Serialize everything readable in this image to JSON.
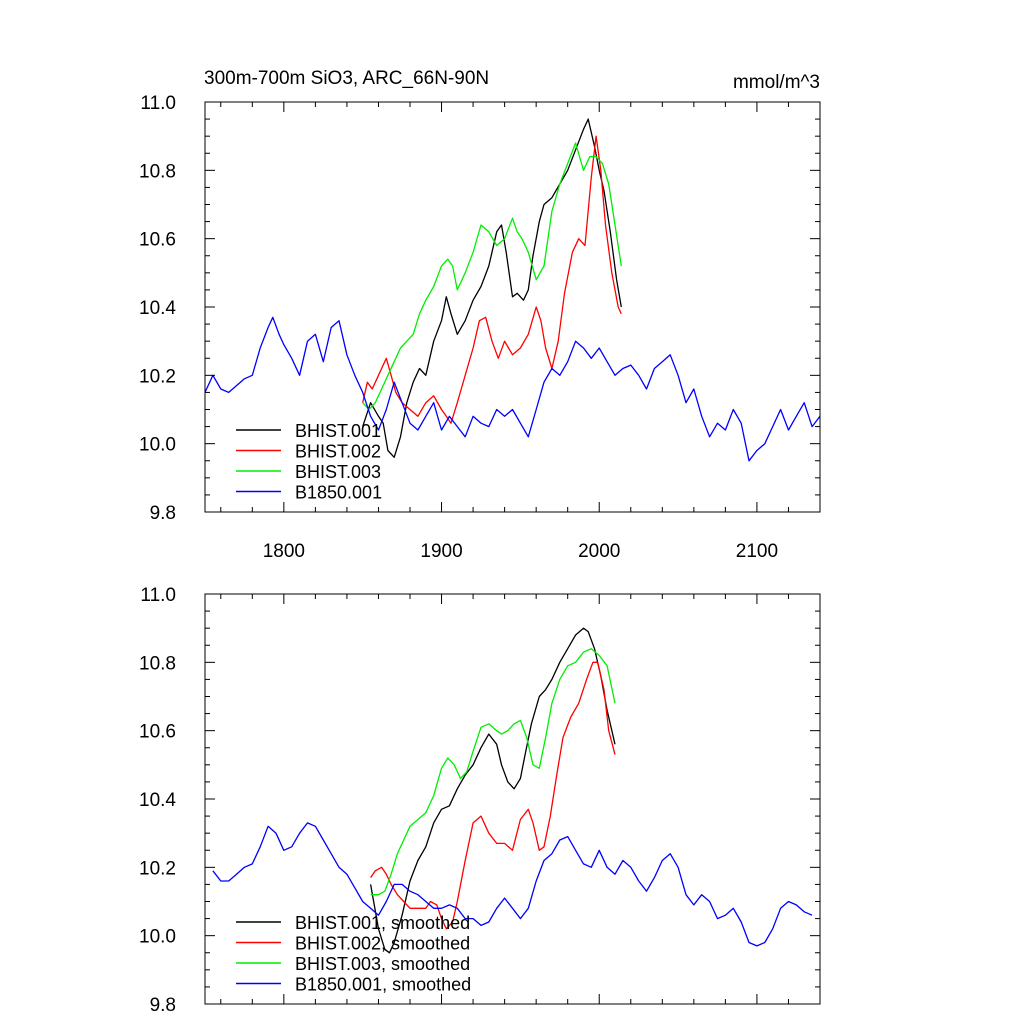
{
  "title_left": "300m-700m SiO3, ARC_66N-90N",
  "title_right": "mmol/m^3",
  "colors": {
    "BHIST.001": "#000000",
    "BHIST.002": "#ff0000",
    "BHIST.003": "#00ee00",
    "B1850.001": "#0000ff"
  },
  "chart_data": [
    {
      "type": "line",
      "xlim": [
        1750,
        2140
      ],
      "ylim": [
        9.8,
        11.0
      ],
      "x_ticks": [
        1800,
        1900,
        2000,
        2100
      ],
      "x_tick_labels": [
        "1800",
        "1900",
        "2000",
        "2100"
      ],
      "y_ticks": [
        9.8,
        10.0,
        10.2,
        10.4,
        10.6,
        10.8,
        11.0
      ],
      "y_tick_labels": [
        "9.8",
        "10.0",
        "10.2",
        "10.4",
        "10.6",
        "10.8",
        "11.0"
      ],
      "grid": false,
      "legend_position": "bottom-left",
      "series": [
        {
          "name": "BHIST.001",
          "color": "#000000",
          "x": [
            1850,
            1855,
            1860,
            1863,
            1866,
            1870,
            1874,
            1878,
            1882,
            1886,
            1890,
            1895,
            1900,
            1903,
            1906,
            1910,
            1915,
            1920,
            1925,
            1930,
            1935,
            1938,
            1941,
            1945,
            1948,
            1952,
            1955,
            1958,
            1962,
            1965,
            1970,
            1975,
            1980,
            1985,
            1990,
            1993,
            1997,
            2000,
            2003,
            2007,
            2011,
            2014
          ],
          "y": [
            10.05,
            10.12,
            10.08,
            10.06,
            9.98,
            9.96,
            10.02,
            10.12,
            10.18,
            10.22,
            10.2,
            10.3,
            10.36,
            10.43,
            10.38,
            10.32,
            10.36,
            10.42,
            10.46,
            10.52,
            10.62,
            10.64,
            10.56,
            10.43,
            10.44,
            10.42,
            10.45,
            10.55,
            10.65,
            10.7,
            10.72,
            10.76,
            10.8,
            10.86,
            10.92,
            10.95,
            10.87,
            10.8,
            10.74,
            10.62,
            10.48,
            10.4
          ]
        },
        {
          "name": "BHIST.002",
          "color": "#ff0000",
          "x": [
            1850,
            1853,
            1856,
            1859,
            1862,
            1865,
            1868,
            1871,
            1875,
            1880,
            1885,
            1890,
            1895,
            1900,
            1903,
            1906,
            1910,
            1915,
            1920,
            1924,
            1928,
            1932,
            1936,
            1940,
            1945,
            1950,
            1955,
            1960,
            1963,
            1966,
            1970,
            1974,
            1978,
            1983,
            1987,
            1991,
            1995,
            1998,
            2001,
            2004,
            2008,
            2012,
            2014
          ],
          "y": [
            10.12,
            10.18,
            10.16,
            10.19,
            10.22,
            10.25,
            10.2,
            10.15,
            10.12,
            10.1,
            10.08,
            10.12,
            10.14,
            10.1,
            10.08,
            10.06,
            10.12,
            10.2,
            10.28,
            10.36,
            10.37,
            10.3,
            10.25,
            10.3,
            10.26,
            10.28,
            10.32,
            10.4,
            10.36,
            10.28,
            10.22,
            10.3,
            10.44,
            10.56,
            10.6,
            10.58,
            10.78,
            10.9,
            10.8,
            10.64,
            10.5,
            10.4,
            10.38
          ]
        },
        {
          "name": "BHIST.003",
          "color": "#00ee00",
          "x": [
            1850,
            1854,
            1858,
            1862,
            1866,
            1870,
            1874,
            1878,
            1882,
            1886,
            1890,
            1895,
            1900,
            1904,
            1907,
            1910,
            1915,
            1920,
            1925,
            1930,
            1935,
            1940,
            1945,
            1948,
            1951,
            1955,
            1960,
            1965,
            1970,
            1975,
            1980,
            1985,
            1990,
            1994,
            1998,
            2002,
            2006,
            2010,
            2014
          ],
          "y": [
            10.12,
            10.1,
            10.12,
            10.16,
            10.2,
            10.24,
            10.28,
            10.3,
            10.32,
            10.38,
            10.42,
            10.46,
            10.52,
            10.54,
            10.52,
            10.45,
            10.5,
            10.56,
            10.64,
            10.62,
            10.58,
            10.6,
            10.66,
            10.62,
            10.6,
            10.56,
            10.48,
            10.52,
            10.68,
            10.76,
            10.82,
            10.88,
            10.8,
            10.84,
            10.84,
            10.82,
            10.76,
            10.64,
            10.52
          ]
        },
        {
          "name": "B1850.001",
          "color": "#0000ff",
          "x": [
            1750,
            1755,
            1760,
            1765,
            1770,
            1775,
            1780,
            1785,
            1790,
            1793,
            1797,
            1800,
            1805,
            1810,
            1815,
            1820,
            1825,
            1830,
            1835,
            1840,
            1845,
            1850,
            1855,
            1860,
            1865,
            1870,
            1875,
            1880,
            1885,
            1890,
            1895,
            1900,
            1905,
            1910,
            1915,
            1920,
            1925,
            1930,
            1935,
            1940,
            1945,
            1950,
            1955,
            1960,
            1965,
            1970,
            1975,
            1980,
            1985,
            1990,
            1995,
            2000,
            2005,
            2010,
            2015,
            2020,
            2025,
            2030,
            2035,
            2040,
            2045,
            2050,
            2055,
            2060,
            2065,
            2070,
            2075,
            2080,
            2085,
            2090,
            2095,
            2100,
            2105,
            2110,
            2115,
            2120,
            2125,
            2130,
            2135,
            2140
          ],
          "y": [
            10.15,
            10.2,
            10.16,
            10.15,
            10.17,
            10.19,
            10.2,
            10.28,
            10.34,
            10.37,
            10.32,
            10.29,
            10.25,
            10.2,
            10.3,
            10.32,
            10.24,
            10.34,
            10.36,
            10.26,
            10.2,
            10.15,
            10.08,
            10.04,
            10.1,
            10.18,
            10.12,
            10.06,
            10.04,
            10.08,
            10.12,
            10.04,
            10.08,
            10.05,
            10.02,
            10.08,
            10.06,
            10.05,
            10.1,
            10.08,
            10.1,
            10.06,
            10.02,
            10.1,
            10.18,
            10.22,
            10.2,
            10.24,
            10.3,
            10.28,
            10.25,
            10.28,
            10.24,
            10.2,
            10.22,
            10.23,
            10.2,
            10.16,
            10.22,
            10.24,
            10.26,
            10.2,
            10.12,
            10.16,
            10.08,
            10.02,
            10.06,
            10.04,
            10.1,
            10.06,
            9.95,
            9.98,
            10.0,
            10.05,
            10.1,
            10.04,
            10.08,
            10.12,
            10.05,
            10.08
          ]
        }
      ]
    },
    {
      "type": "line",
      "xlim": [
        1750,
        2140
      ],
      "ylim": [
        9.8,
        11.0
      ],
      "y_ticks": [
        9.8,
        10.0,
        10.2,
        10.4,
        10.6,
        10.8,
        11.0
      ],
      "y_tick_labels": [
        "9.8",
        "10.0",
        "10.2",
        "10.4",
        "10.6",
        "10.8",
        "11.0"
      ],
      "grid": false,
      "legend_position": "bottom-left",
      "series": [
        {
          "name": "BHIST.001, smoothed",
          "color": "#000000",
          "x": [
            1855,
            1860,
            1864,
            1867,
            1870,
            1875,
            1880,
            1885,
            1890,
            1895,
            1900,
            1905,
            1910,
            1915,
            1920,
            1925,
            1930,
            1935,
            1938,
            1942,
            1946,
            1950,
            1953,
            1957,
            1962,
            1966,
            1970,
            1975,
            1980,
            1985,
            1990,
            1993,
            1997,
            2001,
            2005,
            2010
          ],
          "y": [
            10.15,
            10.02,
            9.96,
            9.95,
            9.98,
            10.06,
            10.16,
            10.22,
            10.26,
            10.33,
            10.37,
            10.38,
            10.43,
            10.47,
            10.5,
            10.55,
            10.59,
            10.56,
            10.5,
            10.45,
            10.43,
            10.46,
            10.53,
            10.62,
            10.7,
            10.72,
            10.75,
            10.8,
            10.84,
            10.88,
            10.9,
            10.89,
            10.84,
            10.76,
            10.66,
            10.56
          ]
        },
        {
          "name": "BHIST.002, smoothed",
          "color": "#ff0000",
          "x": [
            1855,
            1858,
            1862,
            1865,
            1868,
            1872,
            1876,
            1880,
            1885,
            1890,
            1893,
            1897,
            1900,
            1903,
            1907,
            1910,
            1915,
            1920,
            1925,
            1930,
            1935,
            1940,
            1945,
            1950,
            1955,
            1958,
            1962,
            1965,
            1969,
            1973,
            1977,
            1982,
            1987,
            1992,
            1996,
            1999,
            2003,
            2006,
            2010
          ],
          "y": [
            10.17,
            10.19,
            10.2,
            10.18,
            10.15,
            10.12,
            10.1,
            10.08,
            10.08,
            10.08,
            10.1,
            10.09,
            10.05,
            10.02,
            10.04,
            10.1,
            10.22,
            10.33,
            10.35,
            10.3,
            10.27,
            10.27,
            10.25,
            10.34,
            10.37,
            10.33,
            10.25,
            10.26,
            10.35,
            10.47,
            10.58,
            10.64,
            10.68,
            10.75,
            10.8,
            10.8,
            10.72,
            10.6,
            10.53
          ]
        },
        {
          "name": "BHIST.003, smoothed",
          "color": "#00ee00",
          "x": [
            1855,
            1860,
            1864,
            1868,
            1872,
            1876,
            1880,
            1885,
            1890,
            1895,
            1900,
            1904,
            1908,
            1912,
            1916,
            1920,
            1925,
            1930,
            1935,
            1938,
            1942,
            1946,
            1950,
            1954,
            1958,
            1962,
            1966,
            1970,
            1975,
            1980,
            1985,
            1990,
            1995,
            2000,
            2005,
            2010
          ],
          "y": [
            10.12,
            10.12,
            10.13,
            10.18,
            10.24,
            10.28,
            10.32,
            10.34,
            10.36,
            10.41,
            10.49,
            10.52,
            10.5,
            10.46,
            10.48,
            10.54,
            10.61,
            10.62,
            10.6,
            10.59,
            10.6,
            10.62,
            10.63,
            10.58,
            10.5,
            10.49,
            10.58,
            10.68,
            10.75,
            10.79,
            10.8,
            10.83,
            10.84,
            10.82,
            10.79,
            10.68
          ]
        },
        {
          "name": "B1850.001, smoothed",
          "color": "#0000ff",
          "x": [
            1755,
            1760,
            1765,
            1770,
            1775,
            1780,
            1785,
            1790,
            1795,
            1800,
            1805,
            1810,
            1815,
            1820,
            1825,
            1830,
            1835,
            1840,
            1845,
            1850,
            1855,
            1860,
            1865,
            1870,
            1875,
            1880,
            1885,
            1890,
            1895,
            1900,
            1905,
            1910,
            1915,
            1920,
            1925,
            1930,
            1935,
            1940,
            1945,
            1950,
            1955,
            1960,
            1965,
            1970,
            1975,
            1980,
            1985,
            1990,
            1995,
            2000,
            2005,
            2010,
            2015,
            2020,
            2025,
            2030,
            2035,
            2040,
            2045,
            2050,
            2055,
            2060,
            2065,
            2070,
            2075,
            2080,
            2085,
            2090,
            2095,
            2100,
            2105,
            2110,
            2115,
            2120,
            2125,
            2130,
            2135
          ],
          "y": [
            10.19,
            10.16,
            10.16,
            10.18,
            10.2,
            10.21,
            10.26,
            10.32,
            10.3,
            10.25,
            10.26,
            10.3,
            10.33,
            10.32,
            10.28,
            10.24,
            10.2,
            10.18,
            10.14,
            10.1,
            10.08,
            10.06,
            10.1,
            10.15,
            10.15,
            10.13,
            10.12,
            10.1,
            10.08,
            10.08,
            10.09,
            10.08,
            10.05,
            10.05,
            10.03,
            10.04,
            10.08,
            10.11,
            10.08,
            10.05,
            10.08,
            10.16,
            10.22,
            10.24,
            10.28,
            10.29,
            10.25,
            10.21,
            10.2,
            10.25,
            10.2,
            10.18,
            10.22,
            10.2,
            10.16,
            10.13,
            10.17,
            10.22,
            10.24,
            10.2,
            10.12,
            10.09,
            10.12,
            10.1,
            10.05,
            10.06,
            10.08,
            10.04,
            9.98,
            9.97,
            9.98,
            10.02,
            10.08,
            10.1,
            10.09,
            10.07,
            10.06
          ]
        }
      ]
    }
  ]
}
